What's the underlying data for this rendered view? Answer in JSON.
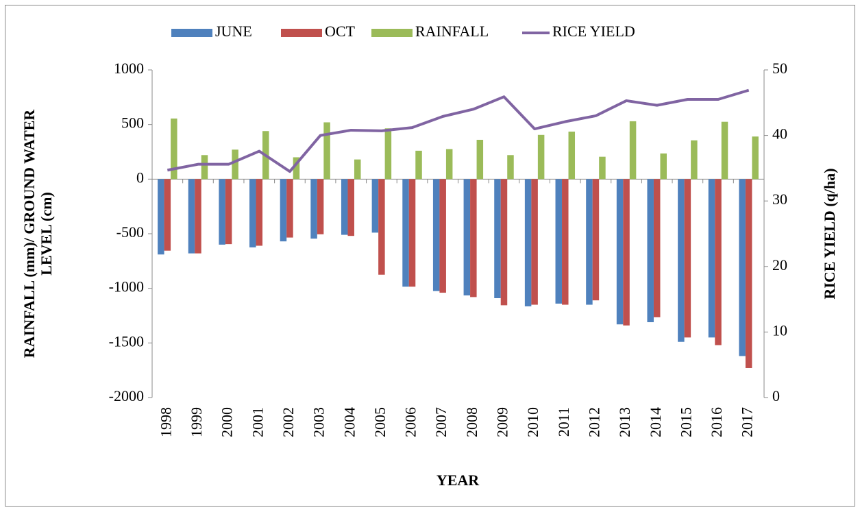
{
  "chart_data": {
    "type": "bar",
    "x_label": "YEAR",
    "y_label": [
      "RAINFALL (mm)/ GROUND  WATER",
      "LEVEL (cm)"
    ],
    "y2_label": "RICE YIELD (q/ha)",
    "categories": [
      "1998",
      "1999",
      "2000",
      "2001",
      "2002",
      "2003",
      "2004",
      "2005",
      "2006",
      "2007",
      "2008",
      "2009",
      "2010",
      "2011",
      "2012",
      "2013",
      "2014",
      "2015",
      "2016",
      "2017"
    ],
    "series": [
      {
        "name": "JUNE",
        "color": "#4f81bd",
        "values": [
          -690,
          -680,
          -600,
          -625,
          -570,
          -545,
          -510,
          -490,
          -985,
          -1025,
          -1065,
          -1090,
          -1165,
          -1140,
          -1150,
          -1330,
          -1310,
          -1490,
          -1450,
          -1620
        ]
      },
      {
        "name": "OCT",
        "color": "#c0504d",
        "values": [
          -655,
          -680,
          -595,
          -610,
          -535,
          -505,
          -520,
          -875,
          -985,
          -1040,
          -1080,
          -1155,
          -1150,
          -1150,
          -1110,
          -1340,
          -1265,
          -1450,
          -1520,
          -1730
        ]
      },
      {
        "name": "RAINFALL",
        "color": "#9bbb59",
        "values": [
          555,
          220,
          270,
          440,
          200,
          520,
          180,
          465,
          260,
          275,
          360,
          220,
          405,
          435,
          205,
          530,
          235,
          355,
          525,
          390
        ]
      },
      {
        "name": "RICE YIELD",
        "color": "#8064a2",
        "axis": "y2",
        "type": "line",
        "values": [
          34.7,
          35.6,
          35.6,
          37.6,
          34.5,
          40.0,
          40.8,
          40.7,
          41.2,
          42.9,
          44.0,
          45.9,
          41.0,
          42.1,
          43.0,
          45.3,
          44.6,
          45.5,
          45.5,
          46.9
        ]
      }
    ],
    "ylim": [
      -2000,
      1000
    ],
    "yticks": [
      -2000,
      -1500,
      -1000,
      -500,
      0,
      500,
      1000
    ],
    "y2lim": [
      0,
      50
    ],
    "y2ticks": [
      0,
      10,
      20,
      30,
      40,
      50
    ],
    "legend": "top"
  }
}
